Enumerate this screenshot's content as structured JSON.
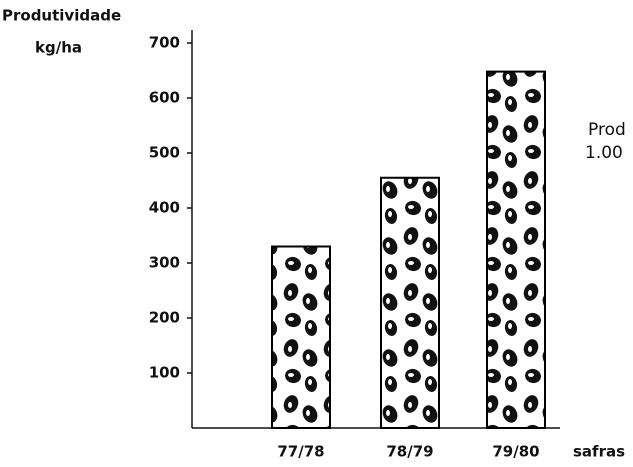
{
  "chart_data": {
    "type": "bar",
    "title": "Produtividade",
    "y_label": "kg/ha",
    "x_label": "safras",
    "annotation": [
      "Prod",
      "1.00"
    ],
    "categories": [
      "77/78",
      "78/79",
      "79/80"
    ],
    "values": [
      330,
      455,
      648
    ],
    "color": "#000000",
    "ylim": [
      0,
      720
    ],
    "yticks": [
      100,
      200,
      300,
      400,
      500,
      600,
      700
    ]
  }
}
